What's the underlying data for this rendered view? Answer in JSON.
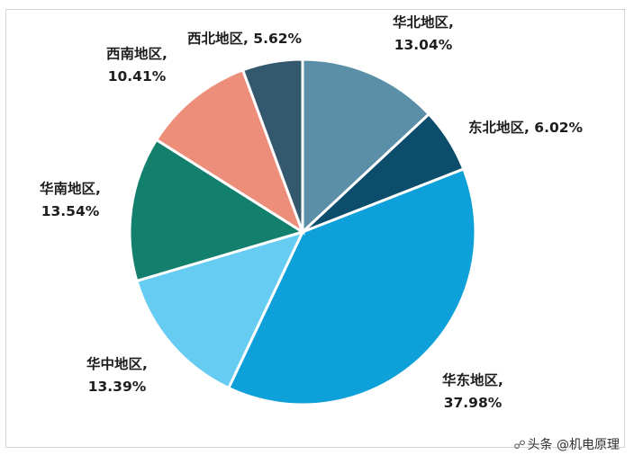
{
  "chart_data": {
    "type": "pie",
    "slices": [
      {
        "label": "华北地区",
        "pct_text": "13.04%",
        "value": 13.04,
        "color": "#5b8fa8"
      },
      {
        "label": "东北地区",
        "pct_text": "6.02%",
        "value": 6.02,
        "color": "#0b4d6b"
      },
      {
        "label": "华东地区",
        "pct_text": "37.98%",
        "value": 37.98,
        "color": "#0ea0d8"
      },
      {
        "label": "华中地区",
        "pct_text": "13.39%",
        "value": 13.39,
        "color": "#66ccf2"
      },
      {
        "label": "华南地区",
        "pct_text": "13.54%",
        "value": 13.54,
        "color": "#13806e"
      },
      {
        "label": "西南地区",
        "pct_text": "10.41%",
        "value": 10.41,
        "color": "#ec8e7a"
      },
      {
        "label": "西北地区",
        "pct_text": "5.62%",
        "value": 5.62,
        "color": "#34586e"
      }
    ]
  },
  "watermark": {
    "text": "头条 @机电原理",
    "icon": "share-icon"
  }
}
